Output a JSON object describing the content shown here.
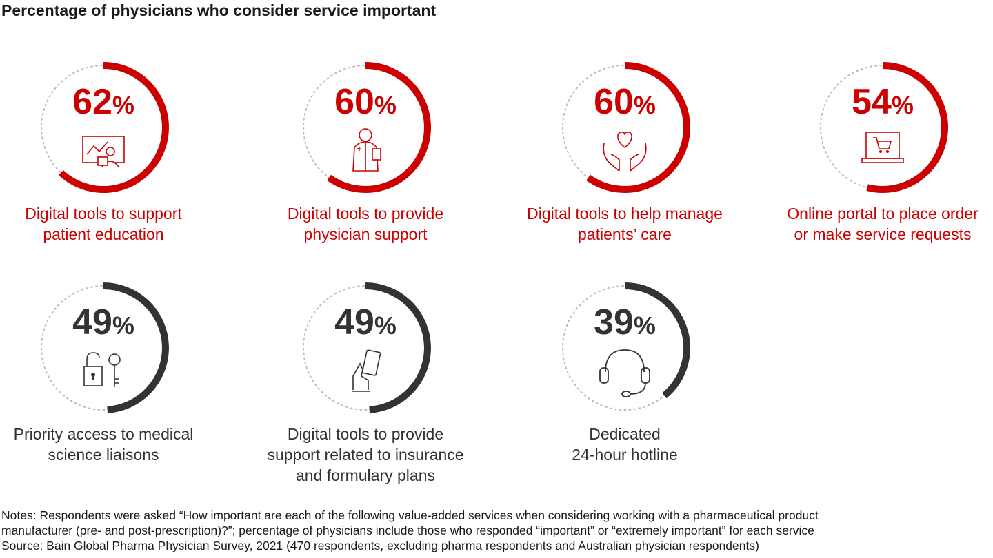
{
  "title": "Percentage of physicians who consider service important",
  "colors": {
    "red": "#cc0000",
    "dark": "#333333",
    "track": "#bbbbbb"
  },
  "chart_data": {
    "type": "radial-gauge",
    "unit": "%",
    "items": [
      {
        "value": 62,
        "label_lines": [
          "Digital tools to support",
          "patient education"
        ],
        "color": "#cc0000",
        "icon": "presentation-icon"
      },
      {
        "value": 60,
        "label_lines": [
          "Digital tools to provide",
          "physician support"
        ],
        "color": "#cc0000",
        "icon": "physician-icon"
      },
      {
        "value": 60,
        "label_lines": [
          "Digital tools to help manage",
          "patients’ care"
        ],
        "color": "#cc0000",
        "icon": "heart-hands-icon"
      },
      {
        "value": 54,
        "label_lines": [
          "Online portal to place order",
          "or make service requests"
        ],
        "color": "#cc0000",
        "icon": "laptop-cart-icon"
      },
      {
        "value": 49,
        "label_lines": [
          "Priority access to medical",
          "science liaisons"
        ],
        "color": "#333333",
        "icon": "lock-key-icon"
      },
      {
        "value": 49,
        "label_lines": [
          "Digital tools to provide",
          "support related to insurance",
          "and formulary plans"
        ],
        "color": "#333333",
        "icon": "hand-card-icon"
      },
      {
        "value": 39,
        "label_lines": [
          "Dedicated",
          "24-hour hotline"
        ],
        "color": "#333333",
        "icon": "headset-icon"
      }
    ]
  },
  "notes": [
    "Notes: Respondents were asked “How important are each of the following value-added services when considering working with a pharmaceutical product",
    "manufacturer (pre- and post-prescription)?”; percentage of physicians include those who responded “important” or “extremely important” for each service",
    "Source: Bain Global Pharma Physician Survey, 2021 (470 respondents, excluding pharma respondents and Australian physician respondents)"
  ]
}
